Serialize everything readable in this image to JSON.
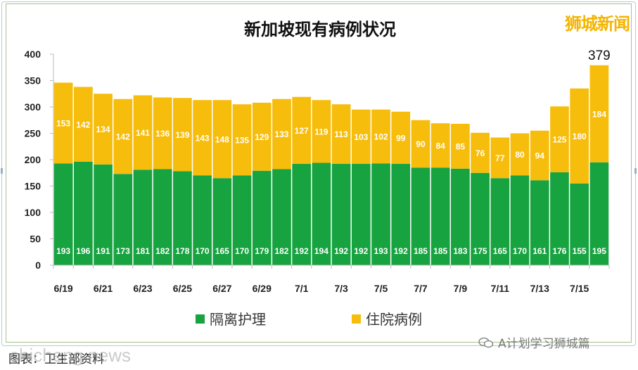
{
  "watermarks": {
    "top_right": "狮城新闻",
    "wechat": "A计划学习狮城篇",
    "site": "shicheng.news"
  },
  "caption": "图表：卫生部资料",
  "colors": {
    "green": "#18a341",
    "yellow": "#f7bd0c",
    "frame": "#a8c28a"
  },
  "chart_data": {
    "type": "bar",
    "stacked": true,
    "title": "新加坡现有病例状况",
    "categories": [
      "6/19",
      "6/20",
      "6/21",
      "6/22",
      "6/23",
      "6/24",
      "6/25",
      "6/26",
      "6/27",
      "6/28",
      "6/29",
      "6/30",
      "7/1",
      "7/2",
      "7/3",
      "7/4",
      "7/5",
      "7/6",
      "7/7",
      "7/8",
      "7/9",
      "7/10",
      "7/11",
      "7/12",
      "7/13",
      "7/14",
      "7/15",
      "7/16"
    ],
    "x_tick_labels": [
      "6/19",
      "6/21",
      "6/23",
      "6/25",
      "6/27",
      "6/29",
      "7/1",
      "7/3",
      "7/5",
      "7/7",
      "7/9",
      "7/11",
      "7/13",
      "7/15"
    ],
    "series": [
      {
        "name": "隔离护理",
        "color": "#18a341",
        "values": [
          193,
          196,
          191,
          173,
          181,
          182,
          178,
          170,
          165,
          170,
          179,
          182,
          192,
          194,
          192,
          192,
          193,
          192,
          185,
          185,
          183,
          175,
          165,
          170,
          161,
          176,
          155,
          195
        ]
      },
      {
        "name": "住院病例",
        "color": "#f7bd0c",
        "values": [
          153,
          142,
          134,
          142,
          141,
          136,
          139,
          143,
          148,
          135,
          129,
          133,
          127,
          119,
          113,
          103,
          102,
          99,
          90,
          84,
          85,
          76,
          77,
          80,
          94,
          125,
          180,
          184
        ]
      }
    ],
    "last_total_label": "379",
    "ylim": [
      0,
      400
    ],
    "yticks": [
      0,
      50,
      100,
      150,
      200,
      250,
      300,
      350,
      400
    ],
    "legend_position": "bottom",
    "grid": false
  }
}
